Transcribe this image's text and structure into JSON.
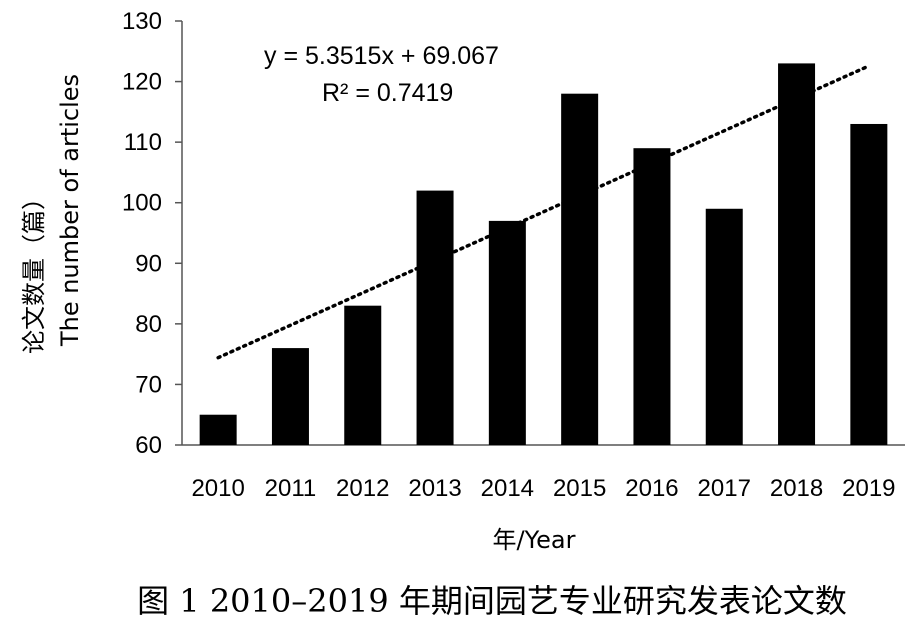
{
  "chart_data": {
    "type": "bar",
    "categories": [
      "2010",
      "2011",
      "2012",
      "2013",
      "2014",
      "2015",
      "2016",
      "2017",
      "2018",
      "2019"
    ],
    "values": [
      65,
      76,
      83,
      102,
      97,
      118,
      109,
      99,
      123,
      113
    ],
    "ylim": [
      60,
      130
    ],
    "yticks": [
      60,
      70,
      80,
      90,
      100,
      110,
      120,
      130
    ],
    "ylabel_cn": "论文数量（篇）",
    "ylabel_en": "The number of articles",
    "xlabel": "年/Year",
    "bar_color": "#000000",
    "trendline": {
      "type": "linear",
      "style": "dotted",
      "slope": 5.3515,
      "intercept": 69.067,
      "equation": "y = 5.3515x + 69.067",
      "r_squared": "R² = 0.7419"
    },
    "caption": "图 1  2010–2019 年期间园艺专业研究发表论文数",
    "grid": false,
    "legend": "none"
  }
}
